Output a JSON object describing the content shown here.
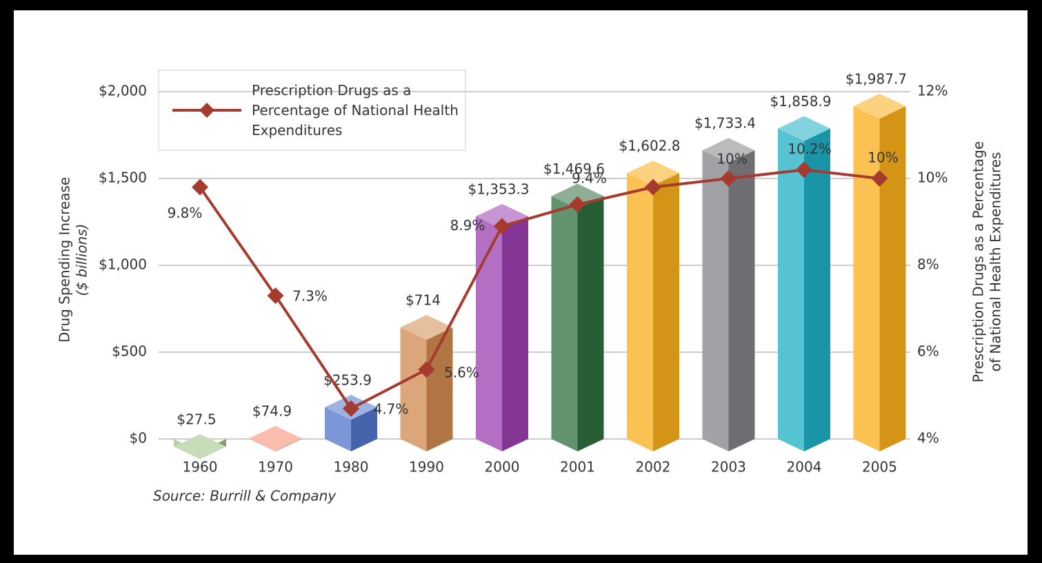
{
  "chart_data": {
    "type": "bar",
    "categories": [
      "1960",
      "1970",
      "1980",
      "1990",
      "2000",
      "2001",
      "2002",
      "2003",
      "2004",
      "2005"
    ],
    "values": [
      27.5,
      74.9,
      253.9,
      714,
      1353.3,
      1469.6,
      1602.8,
      1733.4,
      1858.9,
      1987.7
    ],
    "value_labels": [
      "$27.5",
      "$74.9",
      "$253.9",
      "$714",
      "$1,353.3",
      "$1,469.6",
      "$1,602.8",
      "$1,733.4",
      "$1,858.9",
      "$1,987.7"
    ],
    "colors": [
      "#9dbf7f",
      "#f5866a",
      "#4f74c9",
      "#cf8a4e",
      "#9a3fae",
      "#2f6e3f",
      "#f9ae1a",
      "#828387",
      "#1eafc4",
      "#f9ae1a"
    ],
    "ylim": [
      0,
      2000
    ],
    "yticks": [
      {
        "value": 0,
        "label": "$0"
      },
      {
        "value": 500,
        "label": "$500"
      },
      {
        "value": 1000,
        "label": "$1,000"
      },
      {
        "value": 1500,
        "label": "$1,500"
      },
      {
        "value": 2000,
        "label": "$2,000"
      }
    ],
    "y_label": [
      "Drug Spending Increase",
      "($ billions)"
    ],
    "y2lim": [
      4,
      12
    ],
    "y2ticks": [
      {
        "value": 4,
        "label": "4%"
      },
      {
        "value": 6,
        "label": "6%"
      },
      {
        "value": 8,
        "label": "8%"
      },
      {
        "value": 10,
        "label": "10%"
      },
      {
        "value": 12,
        "label": "12%"
      }
    ],
    "y2_label": [
      "Prescription Drugs as a Percentage",
      "of National Health Expenditures"
    ],
    "series": [
      {
        "name": "Prescription Drugs as a Percentage of National Health Expenditures",
        "type": "line",
        "axis": "y2",
        "color": "#a53a2e",
        "values": [
          9.8,
          7.3,
          4.7,
          5.6,
          8.9,
          9.4,
          9.8,
          10,
          10.2,
          10
        ],
        "value_labels": [
          "9.8%",
          "7.3%",
          "4.7%",
          "5.6%",
          "8.9%",
          "9.4%",
          null,
          "10%",
          "10.2%",
          "10%"
        ]
      }
    ],
    "grid": true,
    "source": "Source: Burrill & Company"
  }
}
